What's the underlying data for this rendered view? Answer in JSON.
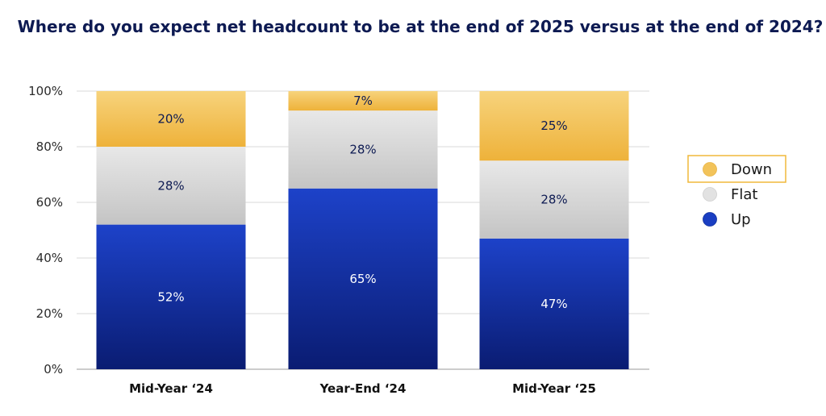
{
  "chart_data": {
    "type": "bar",
    "stacked": true,
    "title": "Where do you expect net headcount to be at the end of 2025 versus at the end of 2024?",
    "categories": [
      "Mid-Year ‘24",
      "Year-End ‘24",
      "Mid-Year ‘25"
    ],
    "series": [
      {
        "name": "Up",
        "values": [
          52,
          65,
          47
        ],
        "labels": [
          "52%",
          "65%",
          "47%"
        ],
        "color": "#1a3ec2"
      },
      {
        "name": "Flat",
        "values": [
          28,
          28,
          28
        ],
        "labels": [
          "28%",
          "28%",
          "28%"
        ],
        "color": "#d6d6d6"
      },
      {
        "name": "Down",
        "values": [
          20,
          7,
          25
        ],
        "labels": [
          "20%",
          "7%",
          "25%"
        ],
        "color": "#f2c35a"
      }
    ],
    "ylim": [
      0,
      100
    ],
    "yticks": [
      "0%",
      "20%",
      "40%",
      "60%",
      "80%",
      "100%"
    ],
    "grid": true,
    "legend_position": "right",
    "legend_order": [
      "Down",
      "Flat",
      "Up"
    ]
  }
}
